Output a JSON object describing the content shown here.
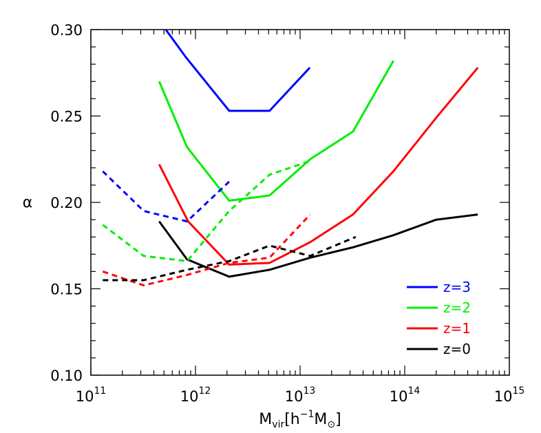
{
  "chart_data": {
    "type": "line",
    "title": "",
    "xlabel": "M_vir[h^-1 M_sun]",
    "xlabel_parts": {
      "base": "M",
      "sub": "vir",
      "open": "[h",
      "sup": "−1",
      "m": "M",
      "close": "]"
    },
    "ylabel": "α",
    "xscale": "log",
    "xlim": [
      100000000000.0,
      1000000000000000.0
    ],
    "ylim": [
      0.1,
      0.3
    ],
    "x_ticks": [
      {
        "value": 100000000000.0,
        "base": "10",
        "exp": "11"
      },
      {
        "value": 1000000000000.0,
        "base": "10",
        "exp": "12"
      },
      {
        "value": 10000000000000.0,
        "base": "10",
        "exp": "13"
      },
      {
        "value": 100000000000000.0,
        "base": "10",
        "exp": "14"
      },
      {
        "value": 1000000000000000.0,
        "base": "10",
        "exp": "15"
      }
    ],
    "y_ticks": [
      {
        "value": 0.1,
        "label": "0.10"
      },
      {
        "value": 0.15,
        "label": "0.15"
      },
      {
        "value": 0.2,
        "label": "0.20"
      },
      {
        "value": 0.25,
        "label": "0.25"
      },
      {
        "value": 0.3,
        "label": "0.30"
      }
    ],
    "legend_position": "bottom-right",
    "grid": false,
    "series": [
      {
        "name": "z=3",
        "color": "#0000ff",
        "style": "solid",
        "x": [
          440000000000.0,
          810000000000.0,
          2100000000000.0,
          5100000000000.0,
          12400000000000.0
        ],
        "y": [
          0.306,
          0.284,
          0.253,
          0.253,
          0.278
        ]
      },
      {
        "name": "z=2",
        "color": "#00ee00",
        "style": "solid",
        "x": [
          450000000000.0,
          830000000000.0,
          2100000000000.0,
          5100000000000.0,
          12500000000000.0,
          32000000000000.0,
          78000000000000.0
        ],
        "y": [
          0.27,
          0.232,
          0.201,
          0.204,
          0.225,
          0.241,
          0.282
        ]
      },
      {
        "name": "z=1",
        "color": "#ff0000",
        "style": "solid",
        "x": [
          450000000000.0,
          850000000000.0,
          2100000000000.0,
          5100000000000.0,
          12500000000000.0,
          32000000000000.0,
          78000000000000.0,
          200000000000000.0,
          500000000000000.0
        ],
        "y": [
          0.222,
          0.189,
          0.164,
          0.165,
          0.177,
          0.193,
          0.218,
          0.249,
          0.278
        ]
      },
      {
        "name": "z=0",
        "color": "#000000",
        "style": "solid",
        "x": [
          450000000000.0,
          830000000000.0,
          2100000000000.0,
          5100000000000.0,
          12500000000000.0,
          32000000000000.0,
          78000000000000.0,
          200000000000000.0,
          500000000000000.0
        ],
        "y": [
          0.189,
          0.167,
          0.157,
          0.161,
          0.168,
          0.174,
          0.181,
          0.19,
          0.193
        ]
      },
      {
        "color": "#0000ff",
        "style": "dashed",
        "x": [
          130000000000.0,
          320000000000.0,
          830000000000.0,
          2100000000000.0
        ],
        "y": [
          0.218,
          0.195,
          0.189,
          0.212
        ]
      },
      {
        "color": "#00ee00",
        "style": "dashed",
        "x": [
          130000000000.0,
          320000000000.0,
          830000000000.0,
          2100000000000.0,
          5100000000000.0,
          12500000000000.0
        ],
        "y": [
          0.187,
          0.169,
          0.166,
          0.195,
          0.216,
          0.224
        ]
      },
      {
        "color": "#ff0000",
        "style": "dashed",
        "x": [
          130000000000.0,
          320000000000.0,
          830000000000.0,
          2100000000000.0,
          5100000000000.0,
          12500000000000.0
        ],
        "y": [
          0.16,
          0.152,
          0.158,
          0.165,
          0.168,
          0.193
        ]
      },
      {
        "color": "#000000",
        "style": "dashed",
        "x": [
          130000000000.0,
          320000000000.0,
          830000000000.0,
          2100000000000.0,
          5100000000000.0,
          12500000000000.0,
          34000000000000.0
        ],
        "y": [
          0.155,
          0.155,
          0.161,
          0.166,
          0.175,
          0.169,
          0.18
        ]
      }
    ]
  }
}
